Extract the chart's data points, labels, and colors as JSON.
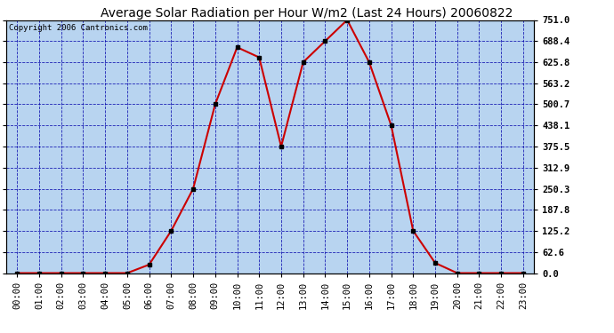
{
  "title": "Average Solar Radiation per Hour W/m2 (Last 24 Hours) 20060822",
  "copyright": "Copyright 2006 Cantronics.com",
  "hours": [
    "00:00",
    "01:00",
    "02:00",
    "03:00",
    "04:00",
    "05:00",
    "06:00",
    "07:00",
    "08:00",
    "09:00",
    "10:00",
    "11:00",
    "12:00",
    "13:00",
    "14:00",
    "15:00",
    "16:00",
    "17:00",
    "18:00",
    "19:00",
    "20:00",
    "21:00",
    "22:00",
    "23:00"
  ],
  "values": [
    0.0,
    0.0,
    0.0,
    0.0,
    0.0,
    0.0,
    25.0,
    125.2,
    250.3,
    500.7,
    670.0,
    640.0,
    375.5,
    625.8,
    688.4,
    751.0,
    625.8,
    438.1,
    125.2,
    30.0,
    0.0,
    0.0,
    0.0,
    0.0
  ],
  "yticks": [
    0.0,
    62.6,
    125.2,
    187.8,
    250.3,
    312.9,
    375.5,
    438.1,
    500.7,
    563.2,
    625.8,
    688.4,
    751.0
  ],
  "ymax": 751.0,
  "ymin": 0.0,
  "line_color": "#cc0000",
  "marker_color": "#000000",
  "bg_color": "#b8d4f0",
  "grid_color": "#0000aa",
  "title_fontsize": 10,
  "copyright_fontsize": 6.5,
  "tick_fontsize": 7.5,
  "axis_label_color": "#0000cc"
}
